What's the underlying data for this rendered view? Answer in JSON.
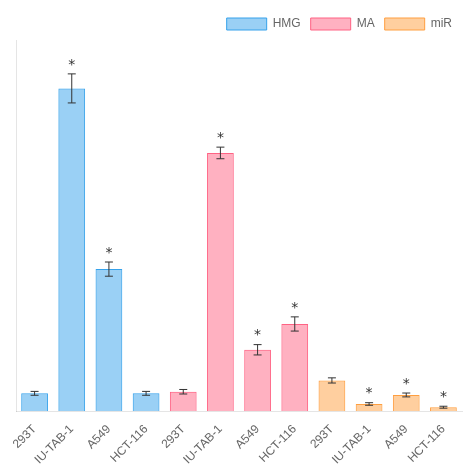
{
  "chart_data": {
    "type": "bar",
    "categories": [
      "293T",
      "IU-TAB-1",
      "A549",
      "HCT-116",
      "293T",
      "IU-TAB-1",
      "A549",
      "HCT-116",
      "293T",
      "IU-TAB-1",
      "A549",
      "HCT-116"
    ],
    "series": [
      {
        "name": "HMG",
        "values": [
          0.055,
          1.0,
          0.44,
          0.055,
          null,
          null,
          null,
          null,
          null,
          null,
          null,
          null
        ],
        "errors": [
          0.006,
          0.045,
          0.022,
          0.006,
          null,
          null,
          null,
          null,
          null,
          null,
          null,
          null
        ],
        "annotations": [
          null,
          "*",
          "*",
          null,
          null,
          null,
          null,
          null,
          null,
          null,
          null,
          null
        ]
      },
      {
        "name": "MA",
        "values": [
          null,
          null,
          null,
          null,
          0.06,
          0.8,
          0.19,
          0.27,
          null,
          null,
          null,
          null
        ],
        "errors": [
          null,
          null,
          null,
          null,
          0.007,
          0.018,
          0.016,
          0.022,
          null,
          null,
          null,
          null
        ],
        "annotations": [
          null,
          null,
          null,
          null,
          null,
          "*",
          "*",
          "*",
          null,
          null,
          null,
          null
        ]
      },
      {
        "name": "miR",
        "values": [
          null,
          null,
          null,
          null,
          null,
          null,
          null,
          null,
          0.095,
          0.022,
          0.05,
          0.012
        ],
        "errors": [
          null,
          null,
          null,
          null,
          null,
          null,
          null,
          null,
          0.008,
          0.004,
          0.006,
          0.003
        ],
        "annotations": [
          null,
          null,
          null,
          null,
          null,
          null,
          null,
          null,
          null,
          "*",
          "*",
          "*"
        ]
      }
    ],
    "ylim": [
      0,
      1.15
    ],
    "tick_labels": "x",
    "grid": false,
    "legend": "upper right"
  }
}
